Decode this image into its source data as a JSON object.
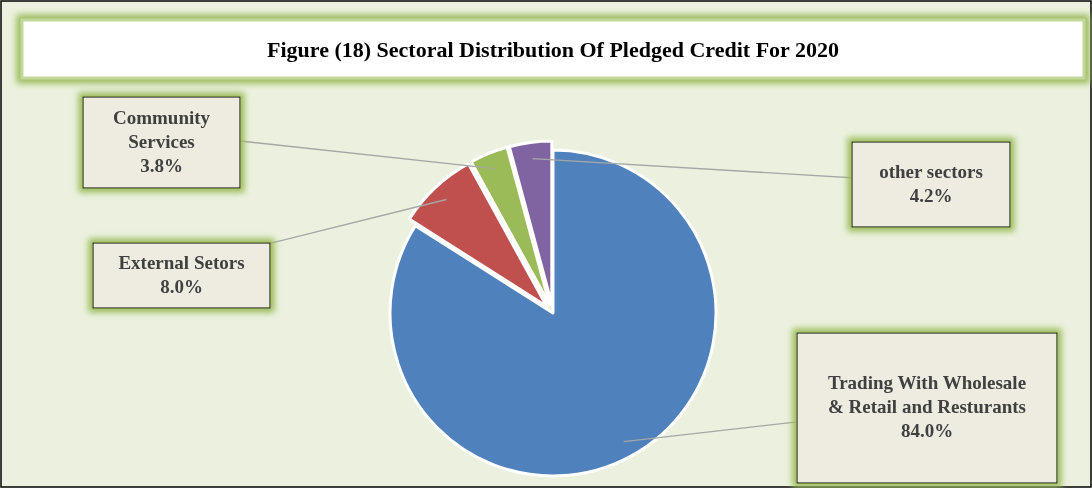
{
  "chart_data": {
    "type": "pie",
    "title": "Figure (18) Sectoral Distribution Of Pledged Credit For 2020",
    "categories": [
      "Trading With Wholesale & Retail and Resturants",
      "External Setors",
      "Community Services",
      "other sectors"
    ],
    "values": [
      84.0,
      8.0,
      3.8,
      4.2
    ],
    "colors": [
      "#4f81bd",
      "#c0504d",
      "#9bbb59",
      "#8064a2"
    ],
    "value_labels": [
      "84.0%",
      "8.0%",
      "3.8%",
      "4.2%"
    ]
  }
}
